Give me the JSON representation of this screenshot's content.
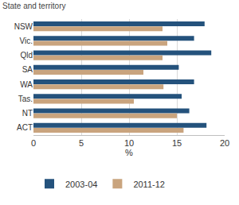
{
  "chart_data": {
    "type": "bar",
    "orientation": "horizontal",
    "title": "State and territory",
    "categories": [
      "NSW",
      "Vic.",
      "Qld",
      "SA",
      "WA",
      "Tas.",
      "NT",
      "ACT"
    ],
    "series": [
      {
        "name": "2003-04",
        "color": "#24527c",
        "values": [
          17.9,
          16.8,
          18.6,
          15.2,
          16.8,
          15.5,
          16.3,
          18.1
        ]
      },
      {
        "name": "2011-12",
        "color": "#c9a47e",
        "values": [
          13.5,
          14.0,
          13.5,
          11.5,
          13.6,
          10.5,
          15.0,
          15.7
        ]
      }
    ],
    "xlabel": "%",
    "xlim": [
      0,
      20
    ],
    "xticks": [
      0,
      5,
      10,
      15,
      20
    ],
    "grid": true,
    "legend": "bottom"
  }
}
